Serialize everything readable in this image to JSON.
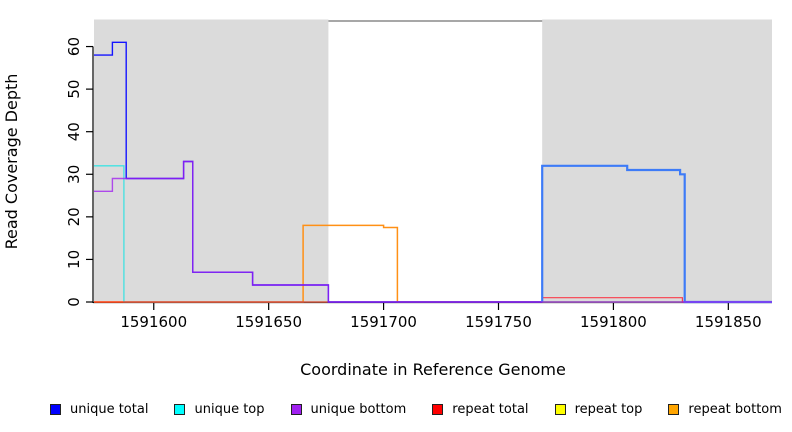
{
  "chart_data": {
    "type": "line",
    "subtype": "step-coverage",
    "title": "",
    "xlabel": "Coordinate in Reference Genome",
    "ylabel": "Read Coverage Depth",
    "xlim": [
      1591574,
      1591869
    ],
    "ylim": [
      0,
      66
    ],
    "x_ticks": [
      1591600,
      1591650,
      1591700,
      1591750,
      1591800,
      1591850
    ],
    "y_ticks": [
      0,
      10,
      20,
      30,
      40,
      50,
      60
    ],
    "grid": false,
    "legend_position": "bottom",
    "shade_color": "#DBDBDB",
    "top_border_color": "#8a8a8a",
    "axis_color": "#000000",
    "shaded_regions": [
      {
        "x0": 1591574,
        "x1": 1591676
      },
      {
        "x0": 1591769,
        "x1": 1591869
      }
    ],
    "series": [
      {
        "name": "unique total",
        "legend_color": "#0000FF",
        "segments": [
          {
            "color": "#1414FF",
            "width": 1.4,
            "opacity": 1,
            "points": [
              [
                1591574,
                58
              ],
              [
                1591582,
                58
              ],
              [
                1591582,
                61
              ],
              [
                1591588,
                61
              ],
              [
                1591588,
                29
              ],
              [
                1591613,
                29
              ],
              [
                1591613,
                33
              ],
              [
                1591617,
                33
              ],
              [
                1591617,
                7
              ],
              [
                1591643,
                7
              ],
              [
                1591643,
                4
              ],
              [
                1591676,
                4
              ],
              [
                1591676,
                0
              ],
              [
                1591769,
                0
              ]
            ]
          },
          {
            "color": "#3D7BF7",
            "width": 2.2,
            "opacity": 1,
            "points": [
              [
                1591769,
                0
              ],
              [
                1591769,
                32
              ],
              [
                1591806,
                32
              ],
              [
                1591806,
                31
              ],
              [
                1591829,
                31
              ],
              [
                1591829,
                30
              ],
              [
                1591831,
                30
              ],
              [
                1591831,
                0
              ],
              [
                1591869,
                0
              ]
            ]
          }
        ]
      },
      {
        "name": "unique top",
        "legend_color": "#00FFFF",
        "segments": [
          {
            "color": "#00E5E5",
            "width": 1.3,
            "opacity": 0.7,
            "points": [
              [
                1591574,
                32
              ],
              [
                1591587,
                32
              ],
              [
                1591587,
                0
              ],
              [
                1591869,
                0
              ]
            ]
          }
        ]
      },
      {
        "name": "unique bottom",
        "legend_color": "#A020F0",
        "segments": [
          {
            "color": "#A020F0",
            "width": 1.4,
            "opacity": 0.78,
            "points": [
              [
                1591574,
                26
              ],
              [
                1591582,
                26
              ],
              [
                1591582,
                29
              ],
              [
                1591613,
                29
              ],
              [
                1591613,
                33
              ],
              [
                1591617,
                33
              ],
              [
                1591617,
                7
              ],
              [
                1591643,
                7
              ],
              [
                1591643,
                4
              ],
              [
                1591676,
                4
              ],
              [
                1591676,
                0
              ],
              [
                1591869,
                0
              ]
            ]
          }
        ]
      },
      {
        "name": "repeat total",
        "legend_color": "#FF0000",
        "segments": [
          {
            "color": "#FF2233",
            "width": 1.2,
            "opacity": 0.85,
            "points": [
              [
                1591574,
                0
              ],
              [
                1591769,
                0
              ],
              [
                1591769,
                1
              ],
              [
                1591830,
                1
              ],
              [
                1591830,
                0
              ],
              [
                1591869,
                0
              ]
            ]
          }
        ]
      },
      {
        "name": "repeat top",
        "legend_color": "#FFFF00",
        "segments": [
          {
            "color": "#FFFF00",
            "width": 1.2,
            "opacity": 1,
            "points": [
              [
                1591574,
                0
              ],
              [
                1591869,
                0
              ]
            ]
          }
        ]
      },
      {
        "name": "repeat bottom",
        "legend_color": "#FFA500",
        "segments": [
          {
            "color": "#FF9015",
            "width": 1.5,
            "opacity": 1,
            "points": [
              [
                1591574,
                0
              ],
              [
                1591665,
                0
              ],
              [
                1591665,
                18
              ],
              [
                1591700,
                18
              ],
              [
                1591700,
                17.5
              ],
              [
                1591706,
                17.5
              ],
              [
                1591706,
                0
              ],
              [
                1591869,
                0
              ]
            ]
          }
        ]
      }
    ]
  }
}
